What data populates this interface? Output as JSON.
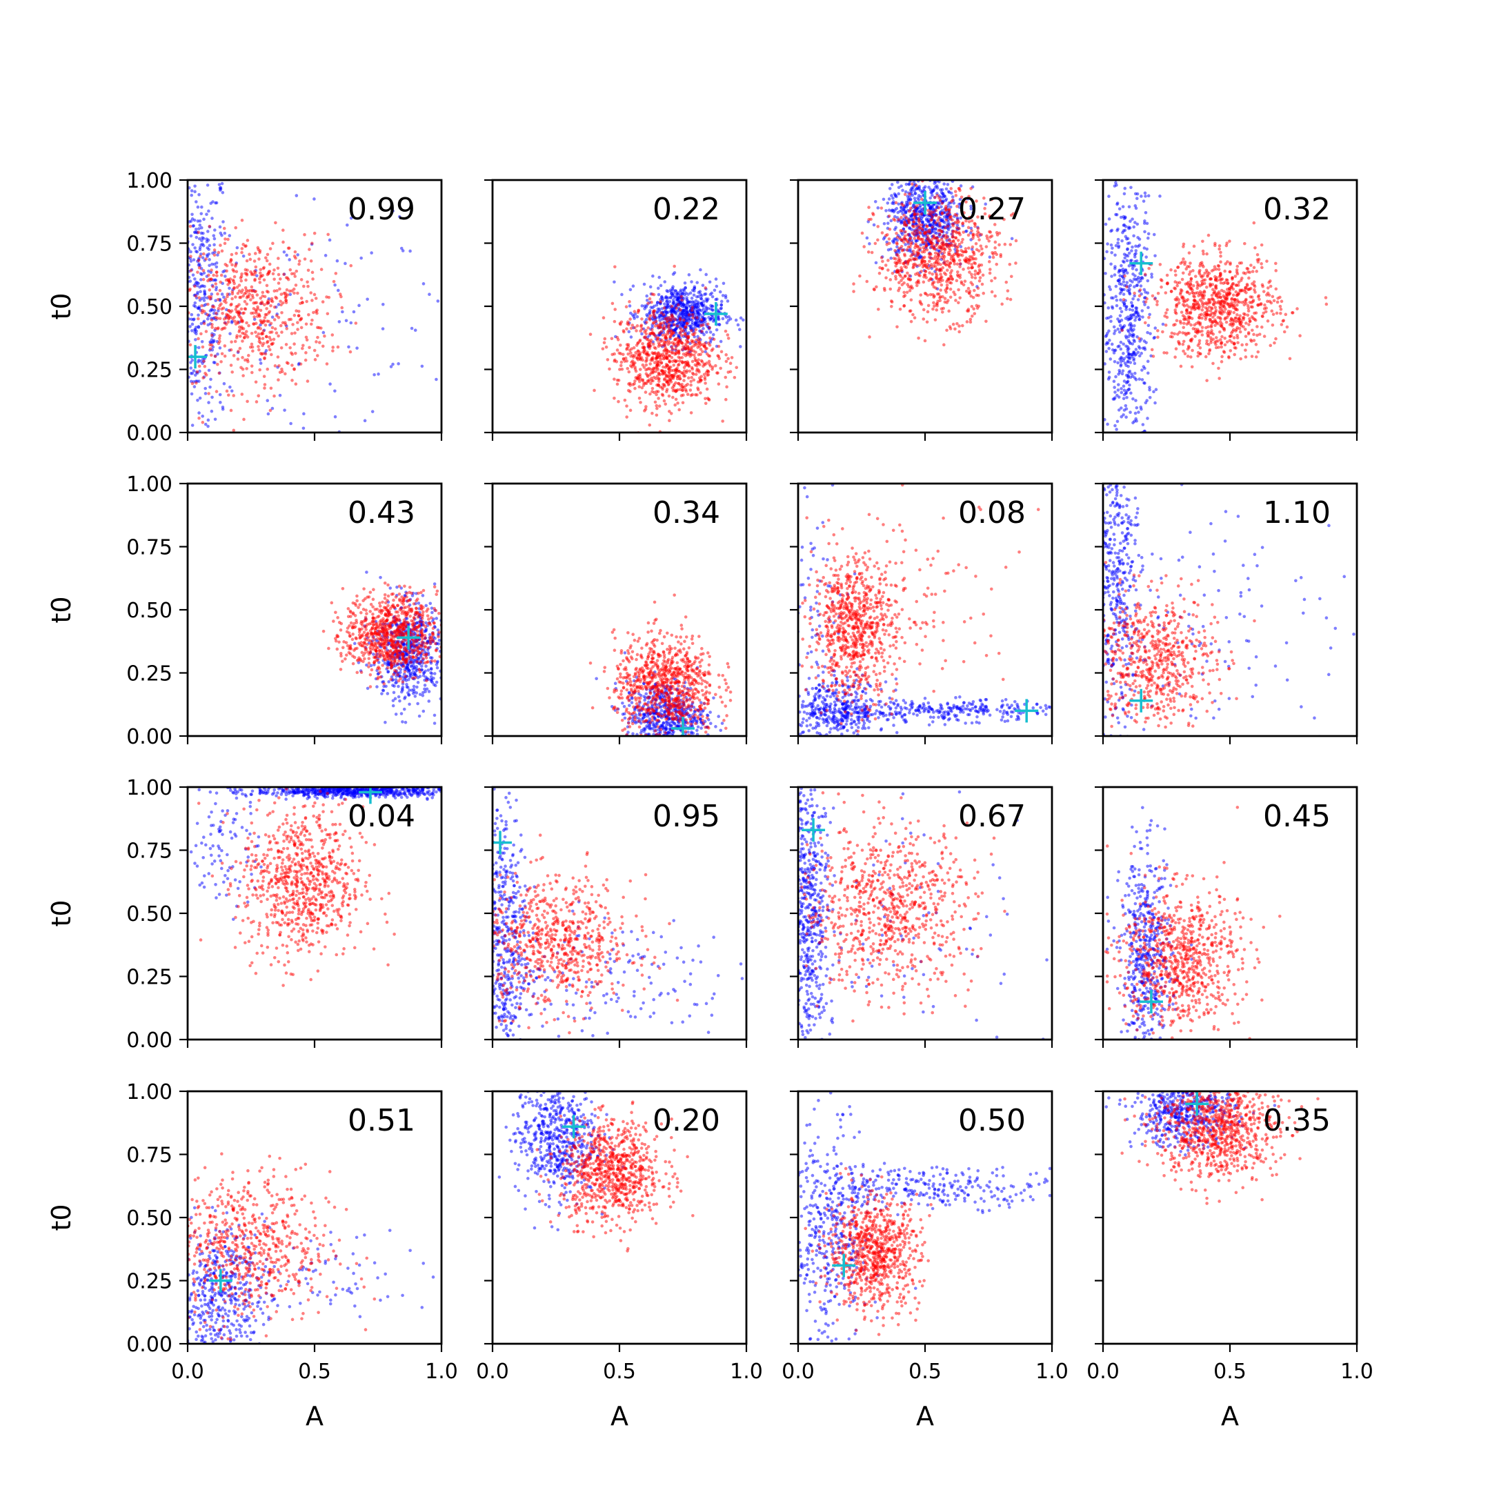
{
  "chart_data": {
    "type": "scatter",
    "layout": "4x4 grid of scatter subplots",
    "xlabel": "A",
    "ylabel": "t0",
    "xlim": [
      0,
      1
    ],
    "ylim": [
      0,
      1
    ],
    "x_ticks": [
      "0.0",
      "0.5",
      "1.0"
    ],
    "y_ticks": [
      "0.00",
      "0.25",
      "0.50",
      "0.75",
      "1.00"
    ],
    "grid": false,
    "colors": {
      "series_a": "#0000ff",
      "series_b": "#ff0000",
      "marker": "#17becf"
    },
    "panels": [
      {
        "value": "0.99",
        "truth": {
          "x": 0.03,
          "y": 0.3
        },
        "blue": [
          {
            "c": [
              0.04,
              0.55
            ],
            "s": [
              0.06,
              0.28
            ],
            "n": 420
          },
          {
            "c": [
              0.35,
              0.4
            ],
            "s": [
              0.25,
              0.22
            ],
            "n": 90
          },
          {
            "c": [
              0.75,
              0.4
            ],
            "s": [
              0.2,
              0.3
            ],
            "n": 40
          }
        ],
        "red": [
          {
            "c": [
              0.25,
              0.48
            ],
            "s": [
              0.15,
              0.15
            ],
            "n": 650
          }
        ]
      },
      {
        "value": "0.22",
        "truth": {
          "x": 0.88,
          "y": 0.47
        },
        "blue": [
          {
            "c": [
              0.75,
              0.47
            ],
            "s": [
              0.08,
              0.06
            ],
            "n": 650
          }
        ],
        "red": [
          {
            "c": [
              0.68,
              0.3
            ],
            "s": [
              0.1,
              0.1
            ],
            "n": 800
          }
        ]
      },
      {
        "value": "0.27",
        "truth": {
          "x": 0.5,
          "y": 0.91
        },
        "blue": [
          {
            "c": [
              0.5,
              0.85
            ],
            "s": [
              0.08,
              0.09
            ],
            "n": 650
          }
        ],
        "red": [
          {
            "c": [
              0.55,
              0.7
            ],
            "s": [
              0.12,
              0.12
            ],
            "n": 800
          }
        ]
      },
      {
        "value": "0.32",
        "truth": {
          "x": 0.15,
          "y": 0.67
        },
        "blue": [
          {
            "c": [
              0.1,
              0.45
            ],
            "s": [
              0.05,
              0.28
            ],
            "n": 550
          }
        ],
        "red": [
          {
            "c": [
              0.45,
              0.5
            ],
            "s": [
              0.12,
              0.1
            ],
            "n": 800
          }
        ]
      },
      {
        "value": "0.43",
        "truth": {
          "x": 0.87,
          "y": 0.39
        },
        "blue": [
          {
            "c": [
              0.87,
              0.33
            ],
            "s": [
              0.07,
              0.1
            ],
            "n": 600
          }
        ],
        "red": [
          {
            "c": [
              0.8,
              0.4
            ],
            "s": [
              0.09,
              0.08
            ],
            "n": 800
          }
        ]
      },
      {
        "value": "0.34",
        "truth": {
          "x": 0.75,
          "y": 0.03
        },
        "blue": [
          {
            "c": [
              0.68,
              0.08
            ],
            "s": [
              0.08,
              0.07
            ],
            "n": 550
          }
        ],
        "red": [
          {
            "c": [
              0.68,
              0.2
            ],
            "s": [
              0.1,
              0.1
            ],
            "n": 800
          }
        ]
      },
      {
        "value": "0.08",
        "truth": {
          "x": 0.9,
          "y": 0.1
        },
        "blue": [
          {
            "c": [
              0.15,
              0.1
            ],
            "s": [
              0.1,
              0.06
            ],
            "n": 400
          },
          {
            "c": [
              0.6,
              0.1
            ],
            "s": [
              0.2,
              0.02
            ],
            "n": 260
          },
          {
            "c": [
              0.08,
              0.55
            ],
            "s": [
              0.06,
              0.25
            ],
            "n": 70
          }
        ],
        "red": [
          {
            "c": [
              0.22,
              0.43
            ],
            "s": [
              0.08,
              0.14
            ],
            "n": 700
          },
          {
            "c": [
              0.45,
              0.55
            ],
            "s": [
              0.2,
              0.2
            ],
            "n": 120
          }
        ]
      },
      {
        "value": "1.10",
        "truth": {
          "x": 0.15,
          "y": 0.14
        },
        "blue": [
          {
            "c": [
              0.05,
              0.6
            ],
            "s": [
              0.05,
              0.3
            ],
            "n": 450
          },
          {
            "c": [
              0.45,
              0.45
            ],
            "s": [
              0.3,
              0.25
            ],
            "n": 120
          }
        ],
        "red": [
          {
            "c": [
              0.2,
              0.3
            ],
            "s": [
              0.12,
              0.13
            ],
            "n": 600
          }
        ]
      },
      {
        "value": "0.04",
        "truth": {
          "x": 0.72,
          "y": 0.98
        },
        "blue": [
          {
            "c": [
              0.65,
              0.985
            ],
            "s": [
              0.2,
              0.012
            ],
            "n": 650
          },
          {
            "c": [
              0.15,
              0.8
            ],
            "s": [
              0.07,
              0.15
            ],
            "n": 100
          }
        ],
        "red": [
          {
            "c": [
              0.45,
              0.62
            ],
            "s": [
              0.12,
              0.15
            ],
            "n": 750
          }
        ]
      },
      {
        "value": "0.95",
        "truth": {
          "x": 0.03,
          "y": 0.78
        },
        "blue": [
          {
            "c": [
              0.04,
              0.4
            ],
            "s": [
              0.05,
              0.28
            ],
            "n": 500
          },
          {
            "c": [
              0.45,
              0.25
            ],
            "s": [
              0.25,
              0.12
            ],
            "n": 150
          }
        ],
        "red": [
          {
            "c": [
              0.25,
              0.38
            ],
            "s": [
              0.15,
              0.13
            ],
            "n": 650
          }
        ]
      },
      {
        "value": "0.67",
        "truth": {
          "x": 0.06,
          "y": 0.83
        },
        "blue": [
          {
            "c": [
              0.04,
              0.5
            ],
            "s": [
              0.04,
              0.3
            ],
            "n": 600
          },
          {
            "c": [
              0.4,
              0.4
            ],
            "s": [
              0.3,
              0.3
            ],
            "n": 100
          }
        ],
        "red": [
          {
            "c": [
              0.35,
              0.52
            ],
            "s": [
              0.17,
              0.16
            ],
            "n": 750
          }
        ]
      },
      {
        "value": "0.45",
        "truth": {
          "x": 0.19,
          "y": 0.15
        },
        "blue": [
          {
            "c": [
              0.17,
              0.3
            ],
            "s": [
              0.05,
              0.22
            ],
            "n": 500
          }
        ],
        "red": [
          {
            "c": [
              0.3,
              0.32
            ],
            "s": [
              0.12,
              0.14
            ],
            "n": 750
          }
        ]
      },
      {
        "value": "0.51",
        "truth": {
          "x": 0.13,
          "y": 0.25
        },
        "blue": [
          {
            "c": [
              0.12,
              0.18
            ],
            "s": [
              0.09,
              0.14
            ],
            "n": 450
          },
          {
            "c": [
              0.55,
              0.28
            ],
            "s": [
              0.3,
              0.08
            ],
            "n": 90
          }
        ],
        "red": [
          {
            "c": [
              0.22,
              0.38
            ],
            "s": [
              0.17,
              0.15
            ],
            "n": 650
          }
        ]
      },
      {
        "value": "0.20",
        "truth": {
          "x": 0.32,
          "y": 0.86
        },
        "blue": [
          {
            "c": [
              0.25,
              0.82
            ],
            "s": [
              0.08,
              0.12
            ],
            "n": 550
          }
        ],
        "red": [
          {
            "c": [
              0.47,
              0.68
            ],
            "s": [
              0.1,
              0.1
            ],
            "n": 750
          }
        ]
      },
      {
        "value": "0.50",
        "truth": {
          "x": 0.18,
          "y": 0.31
        },
        "blue": [
          {
            "c": [
              0.12,
              0.42
            ],
            "s": [
              0.08,
              0.22
            ],
            "n": 400
          },
          {
            "c": [
              0.55,
              0.62
            ],
            "s": [
              0.25,
              0.04
            ],
            "n": 260
          }
        ],
        "red": [
          {
            "c": [
              0.3,
              0.36
            ],
            "s": [
              0.09,
              0.11
            ],
            "n": 750
          }
        ]
      },
      {
        "value": "0.35",
        "truth": {
          "x": 0.37,
          "y": 0.95
        },
        "blue": [
          {
            "c": [
              0.32,
              0.92
            ],
            "s": [
              0.1,
              0.07
            ],
            "n": 500
          }
        ],
        "red": [
          {
            "c": [
              0.45,
              0.85
            ],
            "s": [
              0.12,
              0.1
            ],
            "n": 800
          }
        ]
      }
    ]
  }
}
